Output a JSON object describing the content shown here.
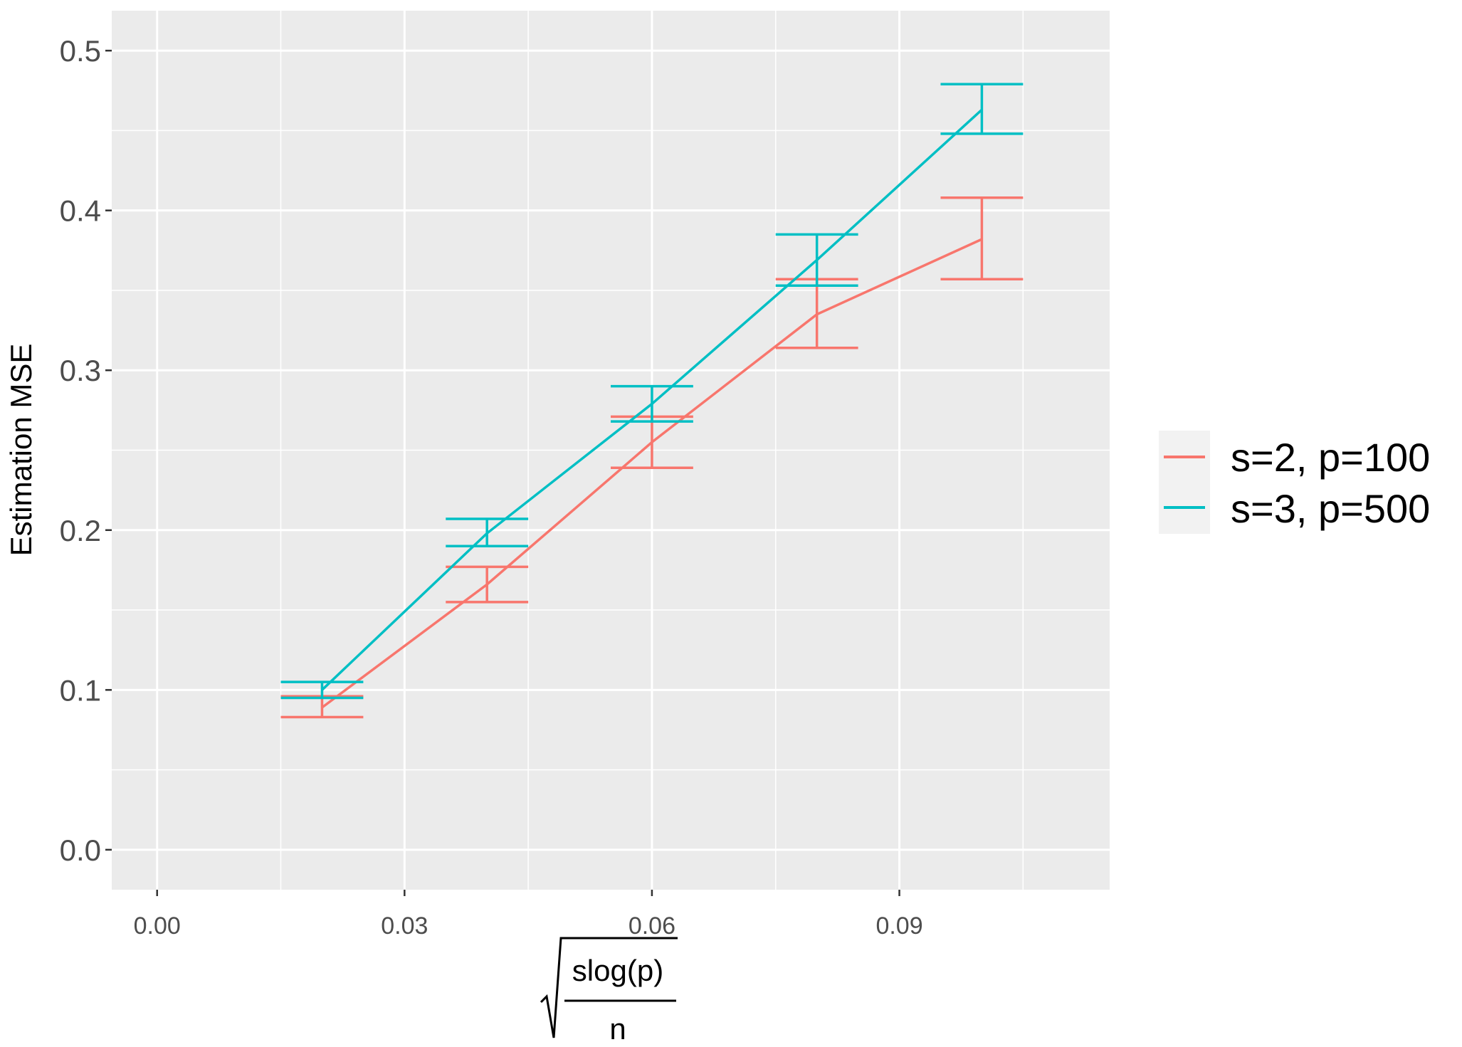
{
  "chart_data": {
    "type": "line",
    "title": "",
    "xlabel": "slog(p) / n (square root)",
    "xlabel_parts": {
      "numerator": "slog(p)",
      "denominator": "n"
    },
    "ylabel": "Estimation MSE",
    "xlim": [
      -0.0055,
      0.1155
    ],
    "ylim": [
      -0.025,
      0.525
    ],
    "x_ticks": [
      "0.00",
      "0.03",
      "0.06",
      "0.09"
    ],
    "x_tick_values": [
      0.0,
      0.03,
      0.06,
      0.09
    ],
    "y_ticks": [
      "0.0",
      "0.1",
      "0.2",
      "0.3",
      "0.4",
      "0.5"
    ],
    "y_tick_values": [
      0.0,
      0.1,
      0.2,
      0.3,
      0.4,
      0.5
    ],
    "grid": true,
    "legend_position": "right",
    "error_bar_half_width": 0.005,
    "series": [
      {
        "name": "s=2, p=100",
        "color": "#F8766D",
        "points": [
          {
            "x": 0.02,
            "y": 0.089,
            "ymin": 0.083,
            "ymax": 0.096
          },
          {
            "x": 0.04,
            "y": 0.166,
            "ymin": 0.155,
            "ymax": 0.177
          },
          {
            "x": 0.06,
            "y": 0.255,
            "ymin": 0.239,
            "ymax": 0.271
          },
          {
            "x": 0.08,
            "y": 0.335,
            "ymin": 0.314,
            "ymax": 0.357
          },
          {
            "x": 0.1,
            "y": 0.382,
            "ymin": 0.357,
            "ymax": 0.408
          }
        ]
      },
      {
        "name": "s=3, p=500",
        "color": "#00BFC4",
        "points": [
          {
            "x": 0.02,
            "y": 0.1,
            "ymin": 0.095,
            "ymax": 0.105
          },
          {
            "x": 0.04,
            "y": 0.198,
            "ymin": 0.19,
            "ymax": 0.207
          },
          {
            "x": 0.06,
            "y": 0.279,
            "ymin": 0.268,
            "ymax": 0.29
          },
          {
            "x": 0.08,
            "y": 0.369,
            "ymin": 0.353,
            "ymax": 0.385
          },
          {
            "x": 0.1,
            "y": 0.463,
            "ymin": 0.448,
            "ymax": 0.479
          }
        ]
      }
    ]
  }
}
